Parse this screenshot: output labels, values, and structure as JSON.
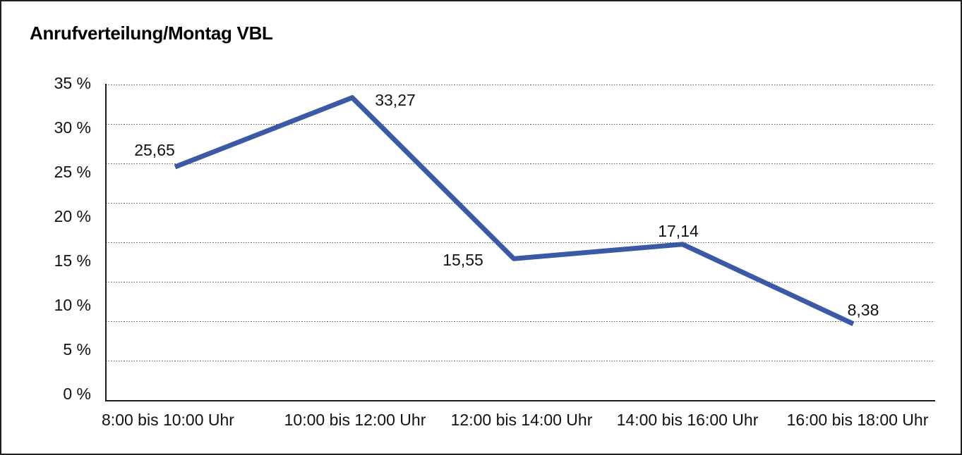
{
  "chart_data": {
    "type": "line",
    "title": "Anrufverteilung/Montag VBL",
    "categories": [
      "8:00 bis 10:00 Uhr",
      "10:00 bis 12:00 Uhr",
      "12:00 bis 14:00 Uhr",
      "14:00 bis 16:00 Uhr",
      "16:00 bis 18:00 Uhr"
    ],
    "values": [
      25.65,
      33.27,
      15.55,
      17.14,
      8.38
    ],
    "point_labels": [
      "25,65",
      "33,27",
      "15,55",
      "17,14",
      "8,38"
    ],
    "ylabel_ticks": [
      "35 %",
      "30 %",
      "25 %",
      "20 %",
      "15 %",
      "10 %",
      "5 %",
      "0 %"
    ],
    "ytick_values": [
      35,
      30,
      25,
      20,
      15,
      10,
      5,
      0
    ],
    "ylim": [
      0,
      35
    ],
    "xlabel": "",
    "ylabel": "",
    "legend": "none",
    "grid": "horizontal-dotted",
    "line_color": "#3A5AA5",
    "text_color": "#111111"
  }
}
